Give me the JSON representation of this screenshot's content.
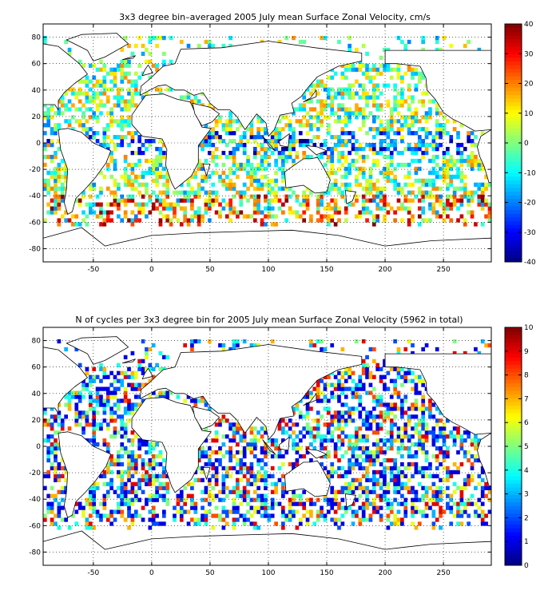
{
  "chart_data": [
    {
      "type": "heatmap",
      "title": "3x3 degree bin–averaged 2005 July mean Surface Zonal Velocity, cm/s",
      "xlabel": "",
      "ylabel": "",
      "x_ticks": [
        -50,
        0,
        50,
        100,
        150,
        200,
        250
      ],
      "y_ticks": [
        -80,
        -60,
        -40,
        -20,
        0,
        20,
        40,
        60,
        80
      ],
      "xlim": [
        -93,
        291
      ],
      "ylim": [
        -90,
        90
      ],
      "grid": true,
      "grid_style": "dotted",
      "bin_size_deg": 3,
      "colorbar": {
        "min": -40,
        "max": 40,
        "ticks": [
          -40,
          -30,
          -20,
          -10,
          0,
          10,
          20,
          30,
          40
        ],
        "colormap": "jet",
        "placement": "right"
      }
    },
    {
      "type": "heatmap",
      "title": "N of cycles per 3x3 degree bin for 2005 July mean Surface Zonal Velocity (5962 in total)",
      "xlabel": "",
      "ylabel": "",
      "x_ticks": [
        -50,
        0,
        50,
        100,
        150,
        200,
        250
      ],
      "y_ticks": [
        -80,
        -60,
        -40,
        -20,
        0,
        20,
        40,
        60,
        80
      ],
      "xlim": [
        -93,
        291
      ],
      "ylim": [
        -90,
        90
      ],
      "grid": true,
      "grid_style": "dotted",
      "bin_size_deg": 3,
      "colorbar": {
        "min": 0,
        "max": 10,
        "ticks": [
          0,
          1,
          2,
          3,
          4,
          5,
          6,
          7,
          8,
          9,
          10
        ],
        "colormap": "jet",
        "placement": "right"
      }
    }
  ]
}
